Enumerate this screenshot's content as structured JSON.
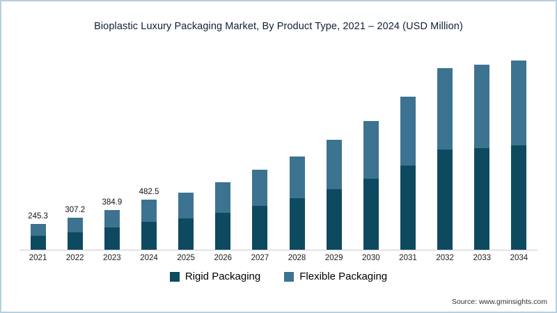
{
  "title": "Bioplastic Luxury Packaging Market, By Product Type, 2021 – 2024 (USD Million)",
  "source": "Source: www.gminsights.com",
  "colors": {
    "rigid": "#0d4a5f",
    "flexible": "#3c7390",
    "border": "#b5cfe0"
  },
  "legend": [
    {
      "label": "Rigid Packaging",
      "color": "#0d4a5f"
    },
    {
      "label": "Flexible Packaging",
      "color": "#3c7390"
    }
  ],
  "chart_data": {
    "type": "bar",
    "stacked": true,
    "title": "Bioplastic Luxury Packaging Market, By Product Type, 2021 – 2024 (USD Million)",
    "xlabel": "",
    "ylabel": "USD Million",
    "grid": false,
    "legend_position": "bottom",
    "categories": [
      "2021",
      "2022",
      "2023",
      "2024",
      "2025",
      "2026",
      "2027",
      "2028",
      "2029",
      "2030",
      "2031",
      "2032",
      "2033",
      "2034"
    ],
    "totals": [
      245.3,
      307.2,
      384.9,
      482.5,
      550,
      650,
      770,
      895,
      1055,
      1240,
      1470,
      1750,
      1780,
      1820
    ],
    "data_labels": [
      "245.3",
      "307.2",
      "384.9",
      "482.5",
      "",
      "",
      "",
      "",
      "",
      "",
      "",
      "",
      "",
      ""
    ],
    "series": [
      {
        "name": "Rigid Packaging",
        "color": "#0d4a5f",
        "values": [
          134.9,
          169.0,
          211.7,
          265.4,
          302.5,
          357.5,
          423.5,
          492.3,
          580.3,
          682.0,
          808.5,
          962.5,
          979.0,
          1001.0
        ]
      },
      {
        "name": "Flexible Packaging",
        "color": "#3c7390",
        "values": [
          110.4,
          138.2,
          173.2,
          217.1,
          247.5,
          292.5,
          346.5,
          402.7,
          474.7,
          558.0,
          661.5,
          787.5,
          801.0,
          819.0
        ]
      }
    ]
  }
}
